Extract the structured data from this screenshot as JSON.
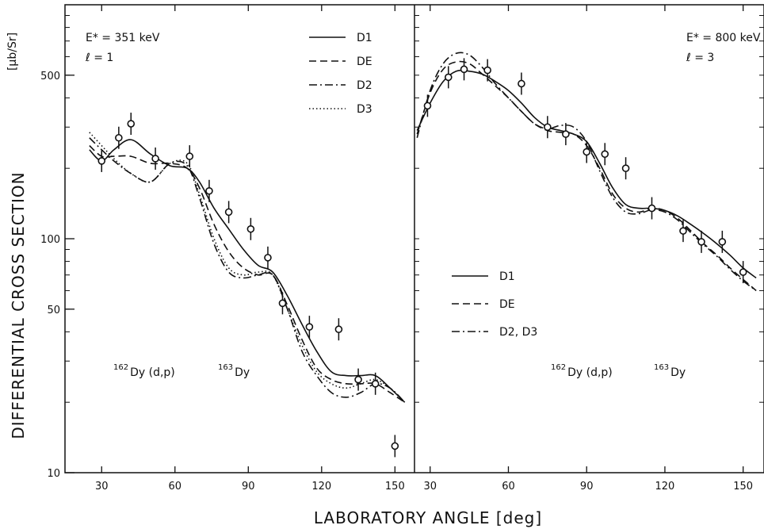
{
  "chart_data": {
    "type": "line",
    "xlabel": "LABORATORY ANGLE [deg]",
    "ylabel": "DIFFERENTIAL CROSS SECTION",
    "yunit": "[μb/Sr]",
    "y_scale": "log",
    "ylim": [
      10,
      1000
    ],
    "y_ticks": [
      10,
      50,
      100,
      500
    ],
    "grid": false,
    "panels": [
      {
        "energy_label": "E* = 351 keV",
        "l_label": "ℓ = 1",
        "reaction": {
          "target_mass": "162",
          "target": "Dy (d,p)",
          "product_mass": "163",
          "product": "Dy"
        },
        "xlim": [
          15,
          158
        ],
        "x_ticks": [
          30,
          60,
          90,
          120,
          150
        ],
        "legend_position": "top-right",
        "series": [
          {
            "name": "D1",
            "style": "solid",
            "x": [
              25,
              30,
              35,
              42,
              50,
              58,
              65,
              70,
              76,
              82,
              88,
              94,
              100,
              106,
              112,
              118,
              124,
              130,
              136,
              142,
              148,
              154
            ],
            "y": [
              240,
              215,
              240,
              265,
              230,
              205,
              200,
              175,
              135,
              110,
              90,
              77,
              72,
              57,
              43,
              33,
              27,
              26,
              26,
              26,
              23,
              20
            ]
          },
          {
            "name": "DE",
            "style": "dashed",
            "x": [
              25,
              30,
              35,
              42,
              50,
              58,
              65,
              70,
              76,
              82,
              88,
              94,
              100,
              106,
              112,
              118,
              124,
              130,
              136,
              142,
              148,
              154
            ],
            "y": [
              250,
              225,
              225,
              225,
              210,
              210,
              200,
              165,
              115,
              88,
              75,
              70,
              70,
              52,
              37,
              28,
              25,
              24,
              24,
              24,
              22,
              20
            ]
          },
          {
            "name": "D2",
            "style": "dashdot",
            "x": [
              25,
              30,
              35,
              42,
              50,
              58,
              65,
              70,
              76,
              82,
              88,
              94,
              100,
              106,
              112,
              118,
              124,
              130,
              136,
              142,
              148,
              154
            ],
            "y": [
              270,
              240,
              215,
              190,
              175,
              210,
              205,
              150,
              95,
              72,
              68,
              70,
              70,
              50,
              33,
              26,
              22,
              21,
              22,
              24,
              23,
              20
            ]
          },
          {
            "name": "D3",
            "style": "dotted",
            "x": [
              25,
              30,
              35,
              42,
              50,
              58,
              65,
              70,
              76,
              82,
              88,
              94,
              100,
              106,
              112,
              118,
              124,
              130,
              136,
              142,
              148,
              154
            ],
            "y": [
              285,
              250,
              220,
              190,
              175,
              210,
              210,
              155,
              100,
              75,
              70,
              72,
              70,
              50,
              35,
              27,
              24,
              23,
              24,
              25,
              23,
              20
            ]
          }
        ],
        "data_points": {
          "x": [
            30,
            37,
            42,
            52,
            66,
            74,
            82,
            91,
            98,
            104,
            115,
            127,
            135,
            142,
            150
          ],
          "y": [
            215,
            270,
            310,
            220,
            225,
            160,
            130,
            110,
            83,
            53,
            42,
            41,
            25,
            24,
            13
          ]
        }
      },
      {
        "energy_label": "E* = 800 keV",
        "l_label": "ℓ = 3",
        "reaction": {
          "target_mass": "162",
          "target": "Dy (d,p)",
          "product_mass": "163",
          "product": "Dy"
        },
        "xlim": [
          24,
          158
        ],
        "x_ticks": [
          30,
          60,
          90,
          120,
          150
        ],
        "legend_position": "bottom-left",
        "series": [
          {
            "name": "D1",
            "style": "solid",
            "x": [
              25,
              30,
              35,
              40,
              45,
              50,
              55,
              60,
              65,
              70,
              75,
              80,
              85,
              90,
              95,
              100,
              105,
              110,
              115,
              120,
              125,
              130,
              135,
              140,
              145,
              150,
              155
            ],
            "y": [
              290,
              380,
              470,
              520,
              520,
              505,
              470,
              430,
              380,
              330,
              300,
              290,
              280,
              260,
              210,
              165,
              140,
              135,
              135,
              132,
              125,
              115,
              105,
              95,
              85,
              75,
              68
            ]
          },
          {
            "name": "DE",
            "style": "dashed",
            "x": [
              25,
              30,
              35,
              40,
              45,
              50,
              55,
              60,
              65,
              70,
              75,
              80,
              85,
              90,
              95,
              100,
              105,
              110,
              115,
              120,
              125,
              130,
              135,
              140,
              145,
              150,
              155
            ],
            "y": [
              280,
              420,
              530,
              570,
              560,
              505,
              450,
              400,
              350,
              310,
              290,
              285,
              280,
              250,
              200,
              155,
              135,
              130,
              135,
              132,
              122,
              108,
              95,
              85,
              75,
              67,
              60
            ]
          },
          {
            "name": "D2, D3",
            "style": "dashdot",
            "x": [
              25,
              30,
              35,
              40,
              45,
              50,
              55,
              60,
              65,
              70,
              75,
              80,
              85,
              90,
              95,
              100,
              105,
              110,
              115,
              120,
              125,
              130,
              135,
              140,
              145,
              150,
              155
            ],
            "y": [
              270,
              430,
              560,
              620,
              610,
              540,
              460,
              400,
              350,
              310,
              295,
              305,
              300,
              260,
              195,
              150,
              130,
              128,
              133,
              130,
              120,
              106,
              94,
              84,
              74,
              66,
              60
            ]
          }
        ],
        "data_points": {
          "x": [
            29,
            37,
            43,
            52,
            65,
            75,
            82,
            90,
            97,
            105,
            115,
            127,
            134,
            142,
            150
          ],
          "y": [
            370,
            490,
            530,
            525,
            460,
            300,
            280,
            235,
            230,
            200,
            135,
            108,
            97,
            97,
            72
          ]
        }
      }
    ]
  }
}
